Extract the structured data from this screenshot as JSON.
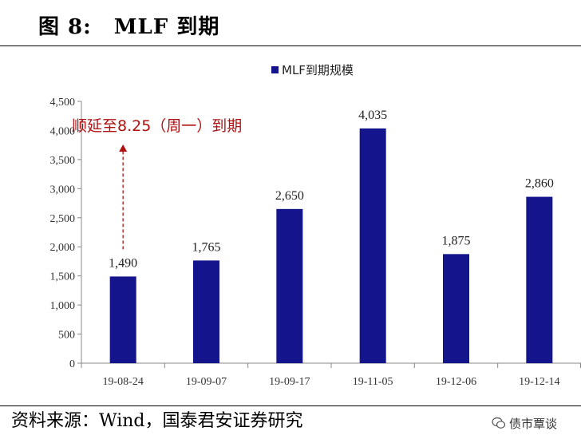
{
  "header": {
    "fig_number": "图 8:",
    "fig_title": "MLF 到期"
  },
  "footer": {
    "source": "资料来源：Wind，国泰君安证券研究",
    "watermark": "债市覃谈"
  },
  "colors": {
    "bar": "#14148C",
    "annotation": "#B01010",
    "axis": "#888888"
  },
  "chart_data": {
    "type": "bar",
    "categories": [
      "19-08-24",
      "19-09-07",
      "19-09-17",
      "19-11-05",
      "19-12-06",
      "19-12-14"
    ],
    "series": [
      {
        "name": "MLF到期规模",
        "values": [
          1490,
          1765,
          2650,
          4035,
          1875,
          2860
        ]
      }
    ],
    "data_labels": [
      "1,490",
      "1,765",
      "2,650",
      "4,035",
      "1,875",
      "2,860"
    ],
    "yticks": [
      "0",
      "500",
      "1,000",
      "1,500",
      "2,000",
      "2,500",
      "3,000",
      "3,500",
      "4,000",
      "4,500"
    ],
    "ylim": [
      0,
      4500
    ],
    "grid": false,
    "legend": "top-center",
    "annotation": {
      "text": "顺延至8.25（周一）到期",
      "category": "19-08-24"
    },
    "title": "",
    "xlabel": "",
    "ylabel": ""
  }
}
